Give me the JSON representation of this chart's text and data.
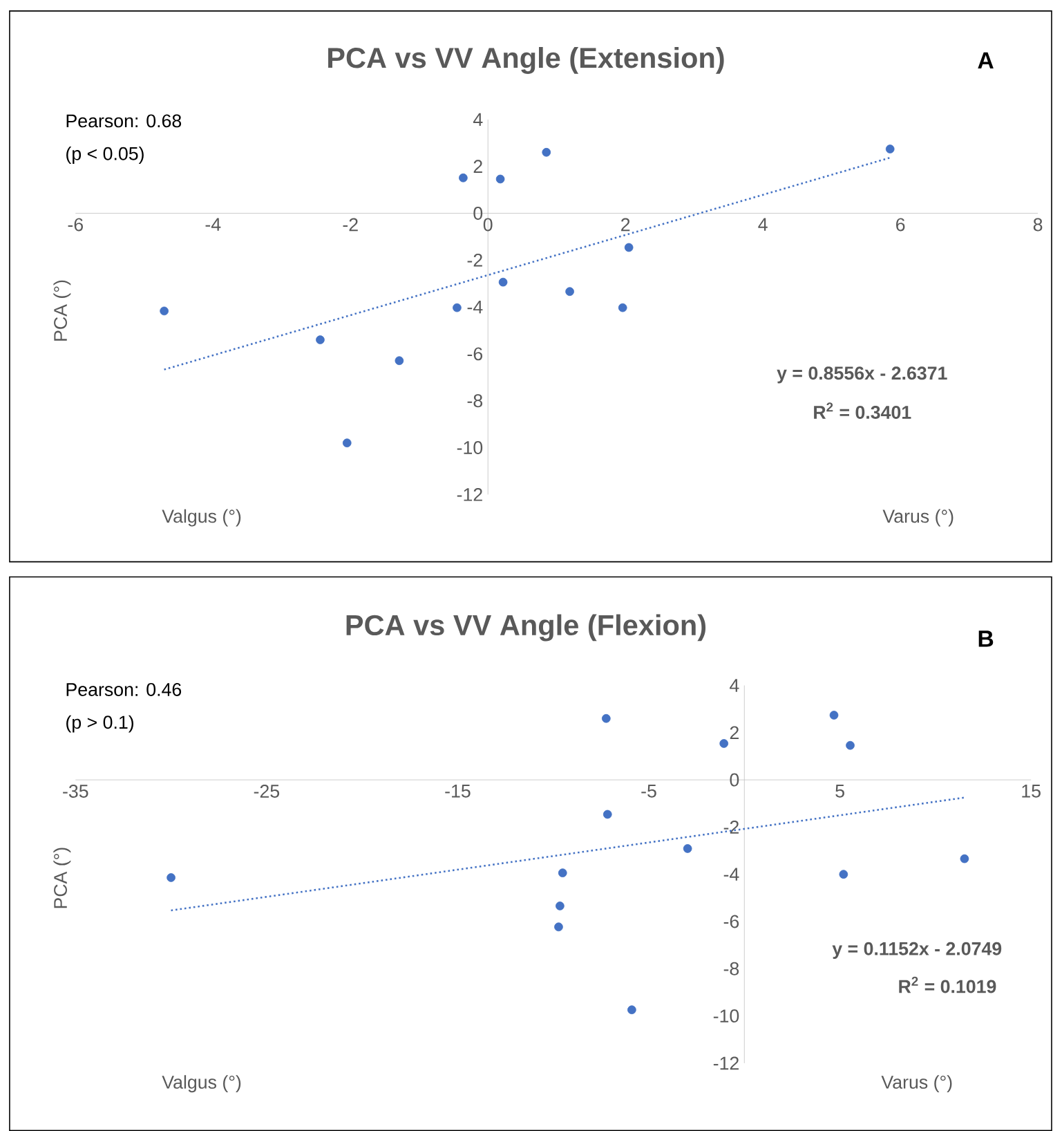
{
  "chart_data": [
    {
      "type": "scatter",
      "title": "PCA vs VV Angle (Extension)",
      "ylabel": "PCA (°)",
      "annotations": [
        "Pearson: 0.68",
        "(p < 0.05)",
        "y = 0.8556x - 2.6371",
        "R$^{2}$ = 0.3401",
        "Valgus (°)",
        "Varus (°)",
        "A"
      ],
      "xlim": [
        -6,
        8
      ],
      "ylim": [
        -12,
        4
      ],
      "xticks": [
        -6,
        -4,
        -2,
        0,
        2,
        4,
        6,
        8
      ],
      "yticks": [
        -12,
        -10,
        -8,
        -6,
        -4,
        -2,
        0,
        2,
        4
      ],
      "series": [
        {
          "marker": "circle",
          "color": "#4472c4",
          "x": [
            -0.36,
            0.18,
            0.85,
            5.85,
            2.05,
            0.22,
            1.19,
            1.96,
            -0.45,
            -4.71,
            -2.44,
            -1.29,
            -2.05
          ],
          "values": [
            1.51,
            1.46,
            2.6,
            2.74,
            -1.46,
            -2.94,
            -3.34,
            -4.03,
            -4.03,
            -4.17,
            -5.4,
            -6.29,
            -9.8
          ]
        },
        {
          "type": "line",
          "marker": "none",
          "line_style": "dotted",
          "color": "#4472c4",
          "x": [
            -4.71,
            5.85
          ],
          "values": [
            -6.67,
            2.37
          ]
        }
      ]
    },
    {
      "type": "scatter",
      "title": "PCA vs VV Angle (Flexion)",
      "ylabel": "PCA (°)",
      "annotations": [
        "Pearson: 0.46",
        "(p > 0.1)",
        "y = 0.1152x - 2.0749",
        "R$^{2}$ = 0.1019",
        "Valgus (°)",
        "Varus (°)",
        "B"
      ],
      "xlim": [
        -35,
        15
      ],
      "ylim": [
        -12,
        4
      ],
      "xticks": [
        -35,
        -25,
        -15,
        -5,
        5,
        15
      ],
      "yticks": [
        -12,
        -10,
        -8,
        -6,
        -4,
        -2,
        0,
        2,
        4
      ],
      "series": [
        {
          "marker": "circle",
          "color": "#4472c4",
          "x": [
            -7.23,
            -1.07,
            4.69,
            5.54,
            -7.16,
            -2.97,
            11.52,
            5.19,
            -30.0,
            -9.51,
            -9.65,
            -9.72,
            -5.89
          ],
          "values": [
            2.6,
            1.54,
            2.74,
            1.46,
            -1.46,
            -2.91,
            -3.34,
            -4.0,
            -4.14,
            -3.94,
            -5.34,
            -6.23,
            -9.74
          ]
        },
        {
          "type": "line",
          "marker": "none",
          "line_style": "dotted",
          "color": "#4472c4",
          "x": [
            -30.0,
            11.52
          ],
          "values": [
            -5.53,
            -0.75
          ]
        }
      ]
    }
  ]
}
